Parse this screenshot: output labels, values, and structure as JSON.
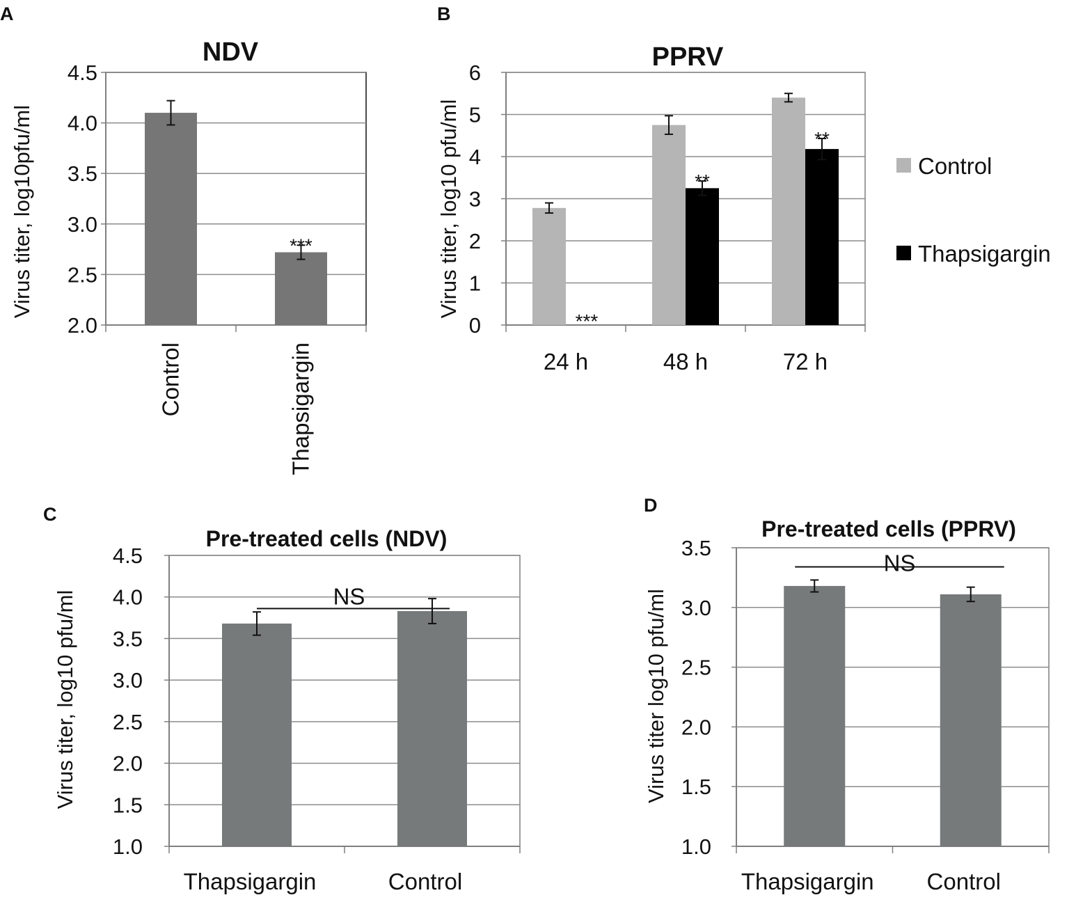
{
  "panels": {
    "A": {
      "letter": "A"
    },
    "B": {
      "letter": "B"
    },
    "C": {
      "letter": "C"
    },
    "D": {
      "letter": "D"
    }
  },
  "colors": {
    "ndv_bar": "#767676",
    "pre_bar": "#767a7a",
    "control_light": "#b5b5b5",
    "thapsigargin_dark": "#000000",
    "grid": "#8c8c8c",
    "axis": "#7f7f7f"
  },
  "chart_data": [
    {
      "id": "A",
      "type": "bar",
      "title": "NDV",
      "xlabel": "",
      "ylabel": "Virus titer, log10pfu/ml",
      "ylim": [
        2.0,
        4.5
      ],
      "yticks": [
        "2.0",
        "2.5",
        "3.0",
        "3.5",
        "4.0",
        "4.5"
      ],
      "categories": [
        "Control",
        "Thapsigargin"
      ],
      "series": [
        {
          "name": "Virus titer",
          "values": [
            4.1,
            2.72
          ],
          "errors": [
            0.12,
            0.07
          ],
          "annotations": [
            "",
            "***"
          ]
        }
      ],
      "grid": true
    },
    {
      "id": "B",
      "type": "bar",
      "title": "PPRV",
      "xlabel": "",
      "ylabel": "Virus titer, log10 pfu/ml",
      "ylim": [
        0,
        6
      ],
      "yticks": [
        "0",
        "1",
        "2",
        "3",
        "4",
        "5",
        "6"
      ],
      "categories": [
        "24 h",
        "48 h",
        "72 h"
      ],
      "series": [
        {
          "name": "Control",
          "values": [
            2.78,
            4.75,
            5.4
          ],
          "errors": [
            0.12,
            0.22,
            0.1
          ],
          "annotations": [
            "",
            "",
            ""
          ]
        },
        {
          "name": "Thapsigargin",
          "values": [
            0,
            3.25,
            4.18
          ],
          "errors": [
            0,
            0.17,
            0.25
          ],
          "annotations": [
            "***",
            "**",
            "**"
          ]
        }
      ],
      "legend": "right",
      "grid": true
    },
    {
      "id": "C",
      "type": "bar",
      "title": "Pre-treated cells (NDV)",
      "xlabel": "",
      "ylabel": "Virus titer, log10 pfu/ml",
      "ylim": [
        1.0,
        4.5
      ],
      "yticks": [
        "1.0",
        "1.5",
        "2.0",
        "2.5",
        "3.0",
        "3.5",
        "4.0",
        "4.5"
      ],
      "categories": [
        "Thapsigargin",
        "Control"
      ],
      "series": [
        {
          "name": "Virus titer",
          "values": [
            3.68,
            3.83
          ],
          "errors": [
            0.14,
            0.15
          ],
          "annotations": [
            "",
            ""
          ]
        }
      ],
      "significance": {
        "label": "NS",
        "level": 3.86
      },
      "grid": true
    },
    {
      "id": "D",
      "type": "bar",
      "title": "Pre-treated cells (PPRV)",
      "xlabel": "",
      "ylabel": "Virus titer log10 pfu/ml",
      "ylim": [
        1.0,
        3.5
      ],
      "yticks": [
        "1.0",
        "1.5",
        "2.0",
        "2.5",
        "3.0",
        "3.5"
      ],
      "categories": [
        "Thapsigargin",
        "Control"
      ],
      "series": [
        {
          "name": "Virus titer",
          "values": [
            3.18,
            3.11
          ],
          "errors": [
            0.05,
            0.06
          ],
          "annotations": [
            "",
            ""
          ]
        }
      ],
      "significance": {
        "label": "NS",
        "level": 3.34
      },
      "grid": true
    }
  ]
}
